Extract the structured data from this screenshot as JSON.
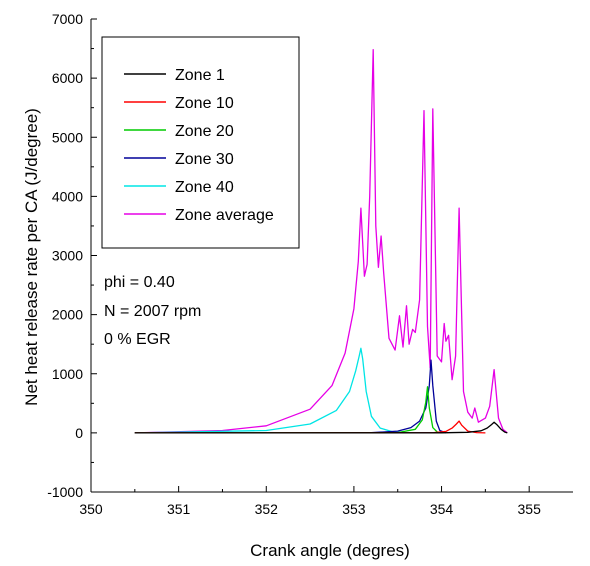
{
  "chart_data": {
    "type": "line",
    "title": "",
    "xlabel": "Crank angle (degres)",
    "ylabel": "Net heat release rate per CA (J/degree)",
    "xlim": [
      350,
      355.5
    ],
    "ylim": [
      -1000,
      7000
    ],
    "xticks": [
      350,
      351,
      352,
      353,
      354,
      355
    ],
    "yticks": [
      -1000,
      0,
      1000,
      2000,
      3000,
      4000,
      5000,
      6000,
      7000
    ],
    "grid": false,
    "legend_position": "top-left",
    "annotations": [
      "phi = 0.40",
      "N = 2007 rpm",
      "0 % EGR"
    ],
    "series": [
      {
        "name": "Zone 1",
        "color": "#000000",
        "x": [
          350.5,
          354.0,
          354.3,
          354.45,
          354.52,
          354.57,
          354.6,
          354.63,
          354.68,
          354.72,
          354.75
        ],
        "y": [
          0,
          2,
          10,
          35,
          80,
          140,
          180,
          140,
          60,
          15,
          0
        ]
      },
      {
        "name": "Zone 10",
        "color": "#ff0000",
        "x": [
          350.5,
          353.9,
          354.05,
          354.12,
          354.17,
          354.2,
          354.23,
          354.3,
          354.4,
          354.5
        ],
        "y": [
          0,
          2,
          25,
          80,
          150,
          200,
          130,
          30,
          5,
          0
        ]
      },
      {
        "name": "Zone 20",
        "color": "#00cc00",
        "x": [
          350.5,
          353.5,
          353.7,
          353.78,
          353.82,
          353.84,
          353.86,
          353.9,
          353.95,
          354.0
        ],
        "y": [
          0,
          5,
          60,
          220,
          520,
          780,
          420,
          90,
          15,
          0
        ]
      },
      {
        "name": "Zone 30",
        "color": "#000099",
        "x": [
          350.5,
          353.2,
          353.5,
          353.65,
          353.75,
          353.82,
          353.86,
          353.88,
          353.9,
          353.94,
          353.98,
          354.05
        ],
        "y": [
          0,
          3,
          30,
          90,
          200,
          420,
          800,
          1230,
          800,
          200,
          40,
          0
        ]
      },
      {
        "name": "Zone 40",
        "color": "#00e5e5",
        "x": [
          350.5,
          352.0,
          352.5,
          352.8,
          352.95,
          353.02,
          353.06,
          353.08,
          353.1,
          353.14,
          353.2,
          353.3,
          353.45,
          353.6
        ],
        "y": [
          0,
          40,
          150,
          380,
          700,
          1050,
          1300,
          1430,
          1250,
          700,
          280,
          80,
          15,
          0
        ]
      },
      {
        "name": "Zone average",
        "color": "#e600e6",
        "x": [
          350.5,
          351.5,
          352.0,
          352.5,
          352.75,
          352.9,
          353.0,
          353.05,
          353.08,
          353.12,
          353.15,
          353.18,
          353.22,
          353.25,
          353.28,
          353.31,
          353.34,
          353.4,
          353.47,
          353.52,
          353.56,
          353.6,
          353.63,
          353.67,
          353.7,
          353.75,
          353.8,
          353.84,
          353.87,
          353.9,
          353.95,
          354.0,
          354.03,
          354.05,
          354.08,
          354.12,
          354.16,
          354.2,
          354.25,
          354.3,
          354.35,
          354.38,
          354.42,
          354.5,
          354.55,
          354.6,
          354.65,
          354.7,
          354.75
        ],
        "y": [
          0,
          40,
          120,
          400,
          800,
          1350,
          2100,
          2900,
          3800,
          2650,
          2850,
          4000,
          6480,
          3500,
          2800,
          3330,
          2700,
          1600,
          1400,
          1980,
          1450,
          2150,
          1500,
          1750,
          1700,
          2250,
          5450,
          1800,
          1100,
          5480,
          1300,
          1200,
          1850,
          1550,
          1650,
          900,
          1300,
          3800,
          700,
          350,
          250,
          420,
          180,
          250,
          450,
          1070,
          250,
          60,
          0
        ]
      }
    ]
  }
}
